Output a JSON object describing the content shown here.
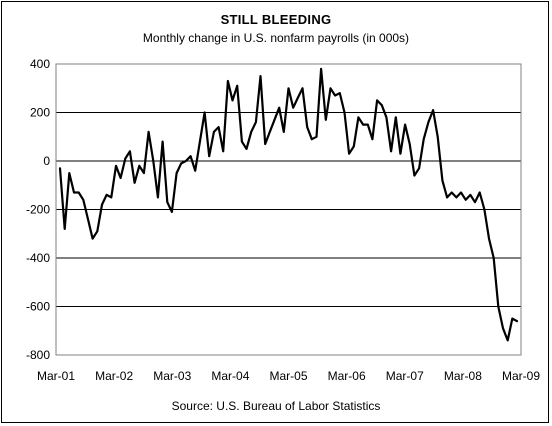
{
  "chart_data": {
    "type": "line",
    "title": "STILL BLEEDING",
    "subtitle": "Monthly change in U.S. nonfarm payrolls (in 000s)",
    "source": "Source: U.S. Bureau of Labor Statistics",
    "xlabel": "",
    "ylabel": "",
    "ylim": [
      -800,
      400
    ],
    "yticks": [
      400,
      200,
      0,
      -200,
      -400,
      -600,
      -800
    ],
    "ytick_labels": [
      "400",
      "200",
      "0",
      "-200",
      "-400",
      "-600",
      "-800"
    ],
    "xtick_labels": [
      "Mar-01",
      "Mar-02",
      "Mar-03",
      "Mar-04",
      "Mar-05",
      "Mar-06",
      "Mar-07",
      "Mar-08",
      "Mar-09"
    ],
    "grid": "horizontal",
    "legend": "none",
    "x_start": "Mar-01",
    "x_end": "Mar-09",
    "series": [
      {
        "values": [
          -30,
          -280,
          -50,
          -130,
          -130,
          -160,
          -240,
          -320,
          -290,
          -180,
          -140,
          -150,
          -20,
          -70,
          10,
          40,
          -90,
          -20,
          -50,
          120,
          0,
          -150,
          80,
          -170,
          -210,
          -50,
          -10,
          0,
          20,
          -40,
          80,
          200,
          20,
          120,
          140,
          40,
          330,
          250,
          310,
          80,
          50,
          120,
          160,
          350,
          70,
          120,
          170,
          220,
          120,
          300,
          220,
          260,
          300,
          140,
          90,
          100,
          380,
          170,
          300,
          270,
          280,
          200,
          30,
          60,
          180,
          150,
          150,
          90,
          250,
          230,
          180,
          40,
          180,
          30,
          150,
          70,
          -60,
          -30,
          90,
          160,
          210,
          100,
          -80,
          -150,
          -130,
          -150,
          -130,
          -160,
          -140,
          -170,
          -130,
          -200,
          -320,
          -400,
          -600,
          -690,
          -740,
          -650,
          -660
        ]
      }
    ]
  }
}
